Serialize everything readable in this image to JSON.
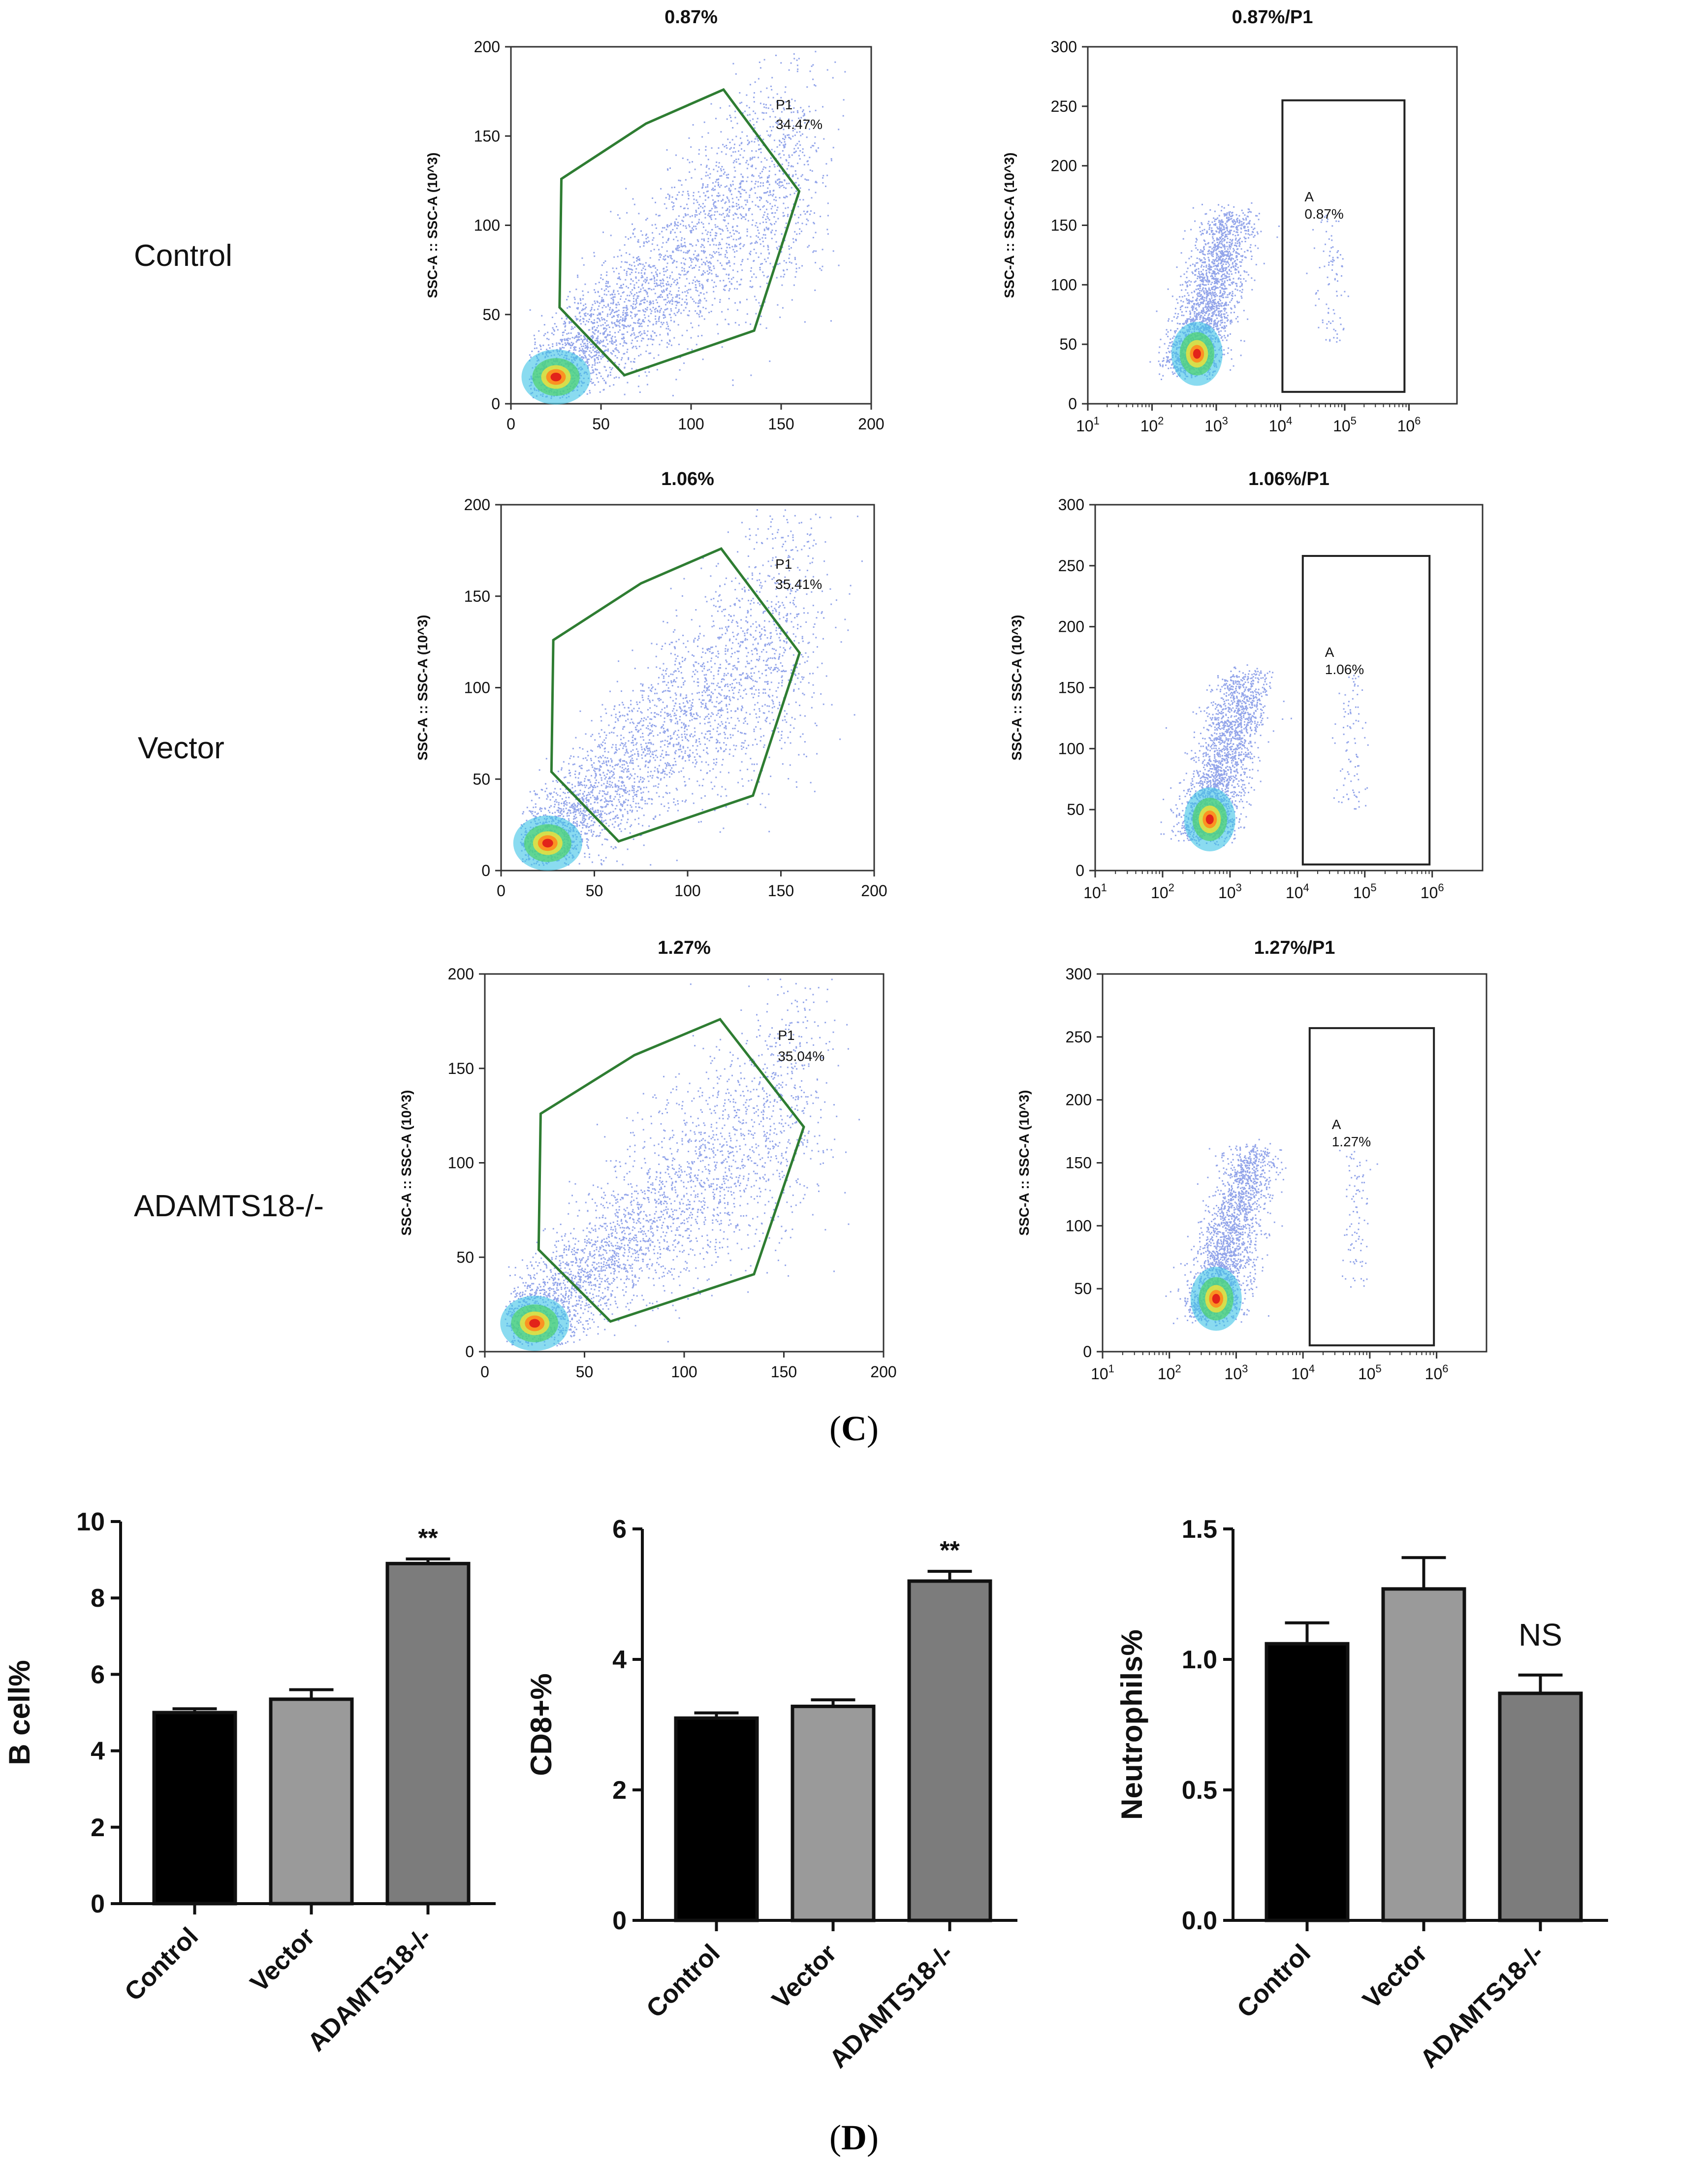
{
  "panel_c": {
    "caption_open": "(",
    "caption_letter": "C",
    "caption_close": ")",
    "row_labels": [
      "Control",
      "Vector",
      "ADAMTS18-/-"
    ],
    "y_axis_label": "SSC-A :: SSC-A (10^3)",
    "scatter_panels": [
      {
        "title": "0.87%",
        "gate_name": "P1",
        "gate_pct": "34.47%"
      },
      {
        "title": "1.06%",
        "gate_name": "P1",
        "gate_pct": "35.41%"
      },
      {
        "title": "1.27%",
        "gate_name": "P1",
        "gate_pct": "35.04%"
      }
    ],
    "log_panels": [
      {
        "title": "0.87%/P1",
        "gate_name": "A",
        "gate_pct": "0.87%"
      },
      {
        "title": "1.06%/P1",
        "gate_name": "A",
        "gate_pct": "1.06%"
      },
      {
        "title": "1.27%/P1",
        "gate_name": "A",
        "gate_pct": "1.27%"
      }
    ],
    "scatter_axes": {
      "x_ticks": [
        "0",
        "50",
        "100",
        "150",
        "200"
      ],
      "y_ticks": [
        "0",
        "50",
        "100",
        "150",
        "200"
      ],
      "xlim": [
        0,
        200
      ],
      "ylim": [
        0,
        200
      ]
    },
    "log_axes": {
      "x_ticks": [
        {
          "base": "10",
          "exp": "1"
        },
        {
          "base": "10",
          "exp": "2"
        },
        {
          "base": "10",
          "exp": "3"
        },
        {
          "base": "10",
          "exp": "4"
        },
        {
          "base": "10",
          "exp": "5"
        },
        {
          "base": "10",
          "exp": "6"
        }
      ],
      "y_ticks": [
        "0",
        "50",
        "100",
        "150",
        "200",
        "250",
        "300"
      ],
      "ylim": [
        0,
        300
      ]
    }
  },
  "panel_d": {
    "caption_open": "(",
    "caption_letter": "D",
    "caption_close": ")"
  },
  "colors": {
    "control": "#000000",
    "vector": "#9a9a9a",
    "knockout": "#7c7c7c",
    "gate": "#2e7d32",
    "dots": "#3a5bd9"
  },
  "chart_data": [
    {
      "type": "bar",
      "title": "",
      "ylabel": "B cell%",
      "xlabel": "",
      "categories": [
        "Control",
        "Vector",
        "ADAMTS18-/-"
      ],
      "values": [
        5.0,
        5.35,
        8.9
      ],
      "errors": [
        0.1,
        0.25,
        0.12
      ],
      "annotations": [
        "",
        "",
        "**"
      ],
      "ylim": [
        0,
        10
      ],
      "yticks": [
        "0",
        "2",
        "4",
        "6",
        "8",
        "10"
      ]
    },
    {
      "type": "bar",
      "title": "",
      "ylabel": "CD8+%",
      "xlabel": "",
      "categories": [
        "Control",
        "Vector",
        "ADAMTS18-/-"
      ],
      "values": [
        3.1,
        3.28,
        5.2
      ],
      "errors": [
        0.08,
        0.1,
        0.15
      ],
      "annotations": [
        "",
        "",
        "**"
      ],
      "ylim": [
        0,
        6
      ],
      "yticks": [
        "0",
        "2",
        "4",
        "6"
      ]
    },
    {
      "type": "bar",
      "title": "",
      "ylabel": "Neutrophils%",
      "xlabel": "",
      "categories": [
        "Control",
        "Vector",
        "ADAMTS18-/-"
      ],
      "values": [
        1.06,
        1.27,
        0.87
      ],
      "errors": [
        0.08,
        0.12,
        0.07
      ],
      "annotations": [
        "",
        "",
        "NS"
      ],
      "ylim": [
        0,
        1.5
      ],
      "yticks": [
        "0.0",
        "0.5",
        "1.0",
        "1.5"
      ]
    }
  ]
}
